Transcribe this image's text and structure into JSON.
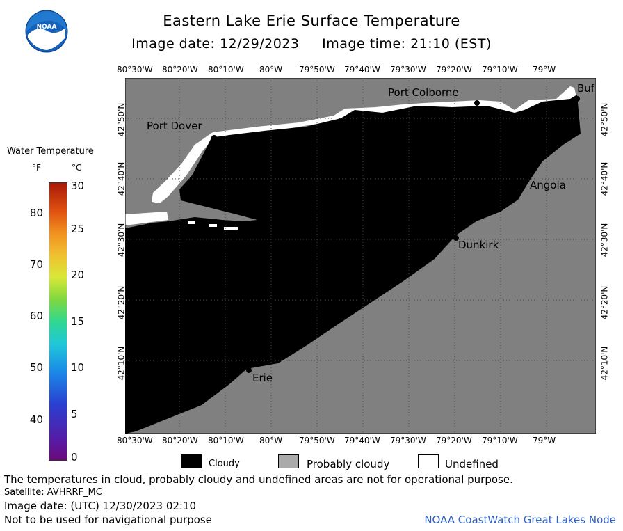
{
  "header": {
    "title": "Eastern Lake Erie Surface Temperature",
    "subtitle": "Image date: 12/29/2023     Image time: 21:10 (EST)"
  },
  "logo": {
    "text": "NOAA",
    "colors": {
      "outer": "#1560b8",
      "inner": "#ffffff"
    }
  },
  "map": {
    "lon_labels": [
      "80°30'W",
      "80°20'W",
      "80°10'W",
      "80°W",
      "79°50'W",
      "79°40'W",
      "79°30'W",
      "79°20'W",
      "79°10'W",
      "79°W"
    ],
    "lat_labels_left": [
      "42°50'N",
      "42°40'N",
      "42°30'N",
      "42°20'N",
      "42°10'N"
    ],
    "lat_labels_right": [
      "42°50'N",
      "42°40'N",
      "42°30'N",
      "42°20'N",
      "42°10'N"
    ],
    "places": {
      "port_dover": "Port Dover",
      "port_colborne": "Port Colborne",
      "buffalo": "Buf",
      "angola": "Angola",
      "dunkirk": "Dunkirk",
      "erie": "Erie"
    },
    "colors": {
      "cloudy": "#000000",
      "probably_cloudy": "#808080",
      "undefined": "#ffffff"
    }
  },
  "legend": {
    "title": "Water Temperature",
    "unit_f": "°F",
    "unit_c": "°C",
    "f_ticks": [
      "80",
      "70",
      "60",
      "50",
      "40"
    ],
    "c_ticks": [
      "30",
      "25",
      "20",
      "15",
      "10",
      "5",
      "0"
    ]
  },
  "key": {
    "cloudy": "Cloudy",
    "probably_cloudy": "Probably cloudy",
    "undefined": "Undefined"
  },
  "footer": {
    "disclaimer": "The temperatures in cloud, probably cloudy and undefined areas are not for operational purpose.",
    "satellite": "Satellite: AVHRRF_MC",
    "utc_date": "Image date: (UTC) 12/30/2023  02:10",
    "nav_warning": "Not to be used for navigational purpose",
    "credit": "NOAA CoastWatch Great Lakes Node"
  }
}
